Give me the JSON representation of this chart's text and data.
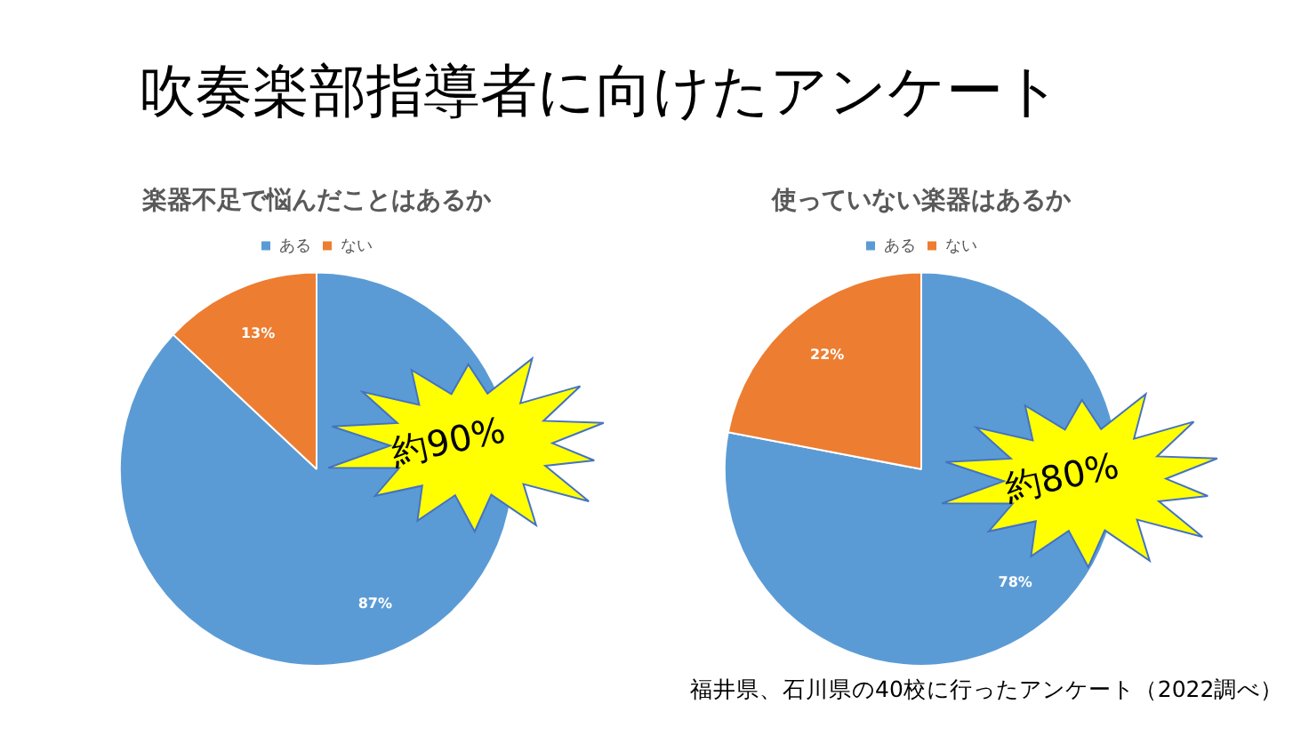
{
  "chart_data": [
    {
      "type": "pie",
      "title": "楽器不足で悩んだことはあるか",
      "categories": [
        "ある",
        "ない"
      ],
      "values": [
        87,
        13
      ],
      "colors": [
        "#5b9bd5",
        "#ed7d31"
      ],
      "value_labels": [
        "87%",
        "13%"
      ],
      "legend": "top",
      "annotations": [
        "吹奏楽部指導者に向けたアンケート",
        "約90%"
      ]
    },
    {
      "type": "pie",
      "title": "使っていない楽器はあるか",
      "categories": [
        "ある",
        "ない"
      ],
      "values": [
        78,
        22
      ],
      "colors": [
        "#5b9bd5",
        "#ed7d31"
      ],
      "value_labels": [
        "78%",
        "22%"
      ],
      "legend": "top",
      "annotations": [
        "約80%",
        "福井県、石川県の40校に行ったアンケート（2022調べ）"
      ]
    }
  ]
}
